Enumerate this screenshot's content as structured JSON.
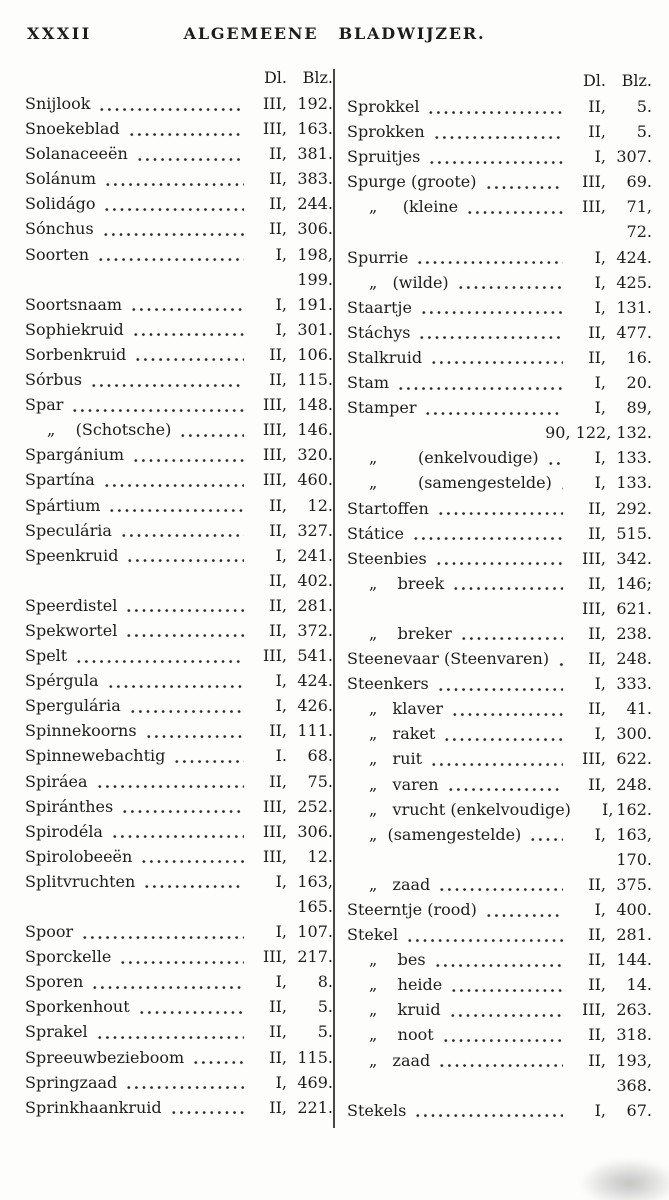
{
  "colors": {
    "ink": "#1d1d1d",
    "paper": "#fdfdfc"
  },
  "header": {
    "folio": "XXXII",
    "title": "ALGEMEENE BLADWIJZER."
  },
  "columns": [
    {
      "side": "left",
      "head": {
        "dl": "Dl.",
        "blz": "Blz."
      },
      "rows": [
        {
          "label": "Snijlook",
          "vol": "III,",
          "page": "192."
        },
        {
          "label": "Snoekeblad",
          "vol": "III,",
          "page": "163."
        },
        {
          "label": "Solanaceeën",
          "vol": "II,",
          "page": "381."
        },
        {
          "label": "Solánum",
          "vol": "II,",
          "page": "383."
        },
        {
          "label": "Solidágo",
          "vol": "II,",
          "page": "244."
        },
        {
          "label": "Sónchus",
          "vol": "II,",
          "page": "306."
        },
        {
          "label": "Soorten",
          "vol": "I,",
          "page": "198,"
        },
        {
          "label": "",
          "vol": "",
          "page": "199."
        },
        {
          "label": "Soortsnaam",
          "vol": "I,",
          "page": "191."
        },
        {
          "label": "Sophiekruid",
          "vol": "I,",
          "page": "301."
        },
        {
          "label": "Sorbenkruid",
          "vol": "II,",
          "page": "106."
        },
        {
          "label": "Sórbus",
          "vol": "II,",
          "page": "115."
        },
        {
          "label": "Spar",
          "vol": "III,",
          "page": "148."
        },
        {
          "label": "„    (Schotsche)",
          "indent": true,
          "vol": "III,",
          "page": "146."
        },
        {
          "label": "Spargánium",
          "vol": "III,",
          "page": "320."
        },
        {
          "label": "Spartína",
          "vol": "III,",
          "page": "460."
        },
        {
          "label": "Spártium",
          "vol": "II,",
          "page": "12."
        },
        {
          "label": "Speculária",
          "vol": "II,",
          "page": "327."
        },
        {
          "label": "Speenkruid",
          "vol": "I,",
          "page": "241."
        },
        {
          "label": "",
          "vol": "II,",
          "page": "402."
        },
        {
          "label": "Speerdistel",
          "vol": "II,",
          "page": "281."
        },
        {
          "label": "Spekwortel",
          "vol": "II,",
          "page": "372."
        },
        {
          "label": "Spelt",
          "vol": "III,",
          "page": "541."
        },
        {
          "label": "Spérgula",
          "vol": "I,",
          "page": "424."
        },
        {
          "label": "Spergulária",
          "vol": "I,",
          "page": "426."
        },
        {
          "label": "Spinnekoorns",
          "vol": "II,",
          "page": "111."
        },
        {
          "label": "Spinnewebachtig",
          "vol": "I.",
          "page": "68."
        },
        {
          "label": "Spiráea",
          "vol": "II,",
          "page": "75."
        },
        {
          "label": "Spiránthes",
          "vol": "III,",
          "page": "252."
        },
        {
          "label": "Spirodéla",
          "vol": "III,",
          "page": "306."
        },
        {
          "label": "Spirolobeeën",
          "vol": "III,",
          "page": "12."
        },
        {
          "label": "Splitvruchten",
          "vol": "I,",
          "page": "163,"
        },
        {
          "label": "",
          "vol": "",
          "page": "165."
        },
        {
          "label": "Spoor",
          "vol": "I,",
          "page": "107."
        },
        {
          "label": "Sporckelle",
          "vol": "III,",
          "page": "217."
        },
        {
          "label": "Sporen",
          "vol": "I,",
          "page": "8."
        },
        {
          "label": "Sporkenhout",
          "vol": "II,",
          "page": "5."
        },
        {
          "label": "Sprakel",
          "vol": "II,",
          "page": "5."
        },
        {
          "label": "Spreeuwbezieboom",
          "vol": "II,",
          "page": "115."
        },
        {
          "label": "Springzaad",
          "vol": "I,",
          "page": "469."
        },
        {
          "label": "Sprinkhaankruid",
          "vol": "II,",
          "page": "221."
        }
      ]
    },
    {
      "side": "right",
      "head": {
        "dl": "Dl.",
        "blz": "Blz."
      },
      "rows": [
        {
          "label": "Sprokkel",
          "vol": "II,",
          "page": "5."
        },
        {
          "label": "Sprokken",
          "vol": "II,",
          "page": "5."
        },
        {
          "label": "Spruitjes",
          "vol": "I,",
          "page": "307."
        },
        {
          "label": "Spurge (groote)",
          "vol": "III,",
          "page": "69."
        },
        {
          "label": "„     (kleine",
          "indent": true,
          "vol": "III,",
          "page": "71,"
        },
        {
          "label": "",
          "vol": "",
          "page": "72."
        },
        {
          "label": "Spurrie",
          "vol": "I,",
          "page": "424."
        },
        {
          "label": "„   (wilde)",
          "indent": true,
          "vol": "I,",
          "page": "425."
        },
        {
          "label": "Staartje",
          "vol": "I,",
          "page": "131."
        },
        {
          "label": "Stáchys",
          "vol": "II,",
          "page": "477."
        },
        {
          "label": "Stalkruid",
          "vol": "II,",
          "page": "16."
        },
        {
          "label": "Stam",
          "vol": "I,",
          "page": "20."
        },
        {
          "label": "Stamper",
          "vol": "I,",
          "page": "89,"
        },
        {
          "label": "",
          "wide": "90, 122, 132."
        },
        {
          "label": "„        (enkelvoudige)",
          "indent": true,
          "vol": "I,",
          "page": "133."
        },
        {
          "label": "„        (samengestelde)",
          "indent": true,
          "vol": "I,",
          "page": "133."
        },
        {
          "label": "Startoffen",
          "vol": "II,",
          "page": "292."
        },
        {
          "label": "Státice",
          "vol": "II,",
          "page": "515."
        },
        {
          "label": "Steenbies",
          "vol": "III,",
          "page": "342."
        },
        {
          "label": "„    breek",
          "indent": true,
          "vol": "II,",
          "page": "146;"
        },
        {
          "label": "",
          "vol": "III,",
          "page": "621."
        },
        {
          "label": "„    breker",
          "indent": true,
          "vol": "II,",
          "page": "238."
        },
        {
          "label": "Steenevaar (Steenvaren)",
          "vol": "II,",
          "page": "248."
        },
        {
          "label": "Steenkers",
          "vol": "I,",
          "page": "333."
        },
        {
          "label": "„   klaver",
          "indent": true,
          "vol": "II,",
          "page": "41."
        },
        {
          "label": "„   raket",
          "indent": true,
          "vol": "I,",
          "page": "300."
        },
        {
          "label": "„   ruit",
          "indent": true,
          "vol": "III,",
          "page": "622."
        },
        {
          "label": "„   varen",
          "indent": true,
          "vol": "II,",
          "page": "248."
        },
        {
          "label": "„   vrucht (enkelvoudige)",
          "indent": true,
          "vol": "I,",
          "page": "162."
        },
        {
          "label": "„  (samengestelde)",
          "indent": true,
          "vol": "I,",
          "page": "163,"
        },
        {
          "label": "",
          "vol": "",
          "page": "170."
        },
        {
          "label": "„   zaad",
          "indent": true,
          "vol": "II,",
          "page": "375."
        },
        {
          "label": "Steerntje (rood)",
          "vol": "I,",
          "page": "400."
        },
        {
          "label": "Stekel",
          "vol": "II,",
          "page": "281."
        },
        {
          "label": "„    bes",
          "indent": true,
          "vol": "II,",
          "page": "144."
        },
        {
          "label": "„    heide",
          "indent": true,
          "vol": "II,",
          "page": "14."
        },
        {
          "label": "„    kruid",
          "indent": true,
          "vol": "III,",
          "page": "263."
        },
        {
          "label": "„    noot",
          "indent": true,
          "vol": "II,",
          "page": "318."
        },
        {
          "label": "„   zaad",
          "indent": true,
          "vol": "II,",
          "page": "193,"
        },
        {
          "label": "",
          "vol": "",
          "page": "368."
        },
        {
          "label": "Stekels",
          "vol": "I,",
          "page": "67."
        }
      ]
    }
  ]
}
